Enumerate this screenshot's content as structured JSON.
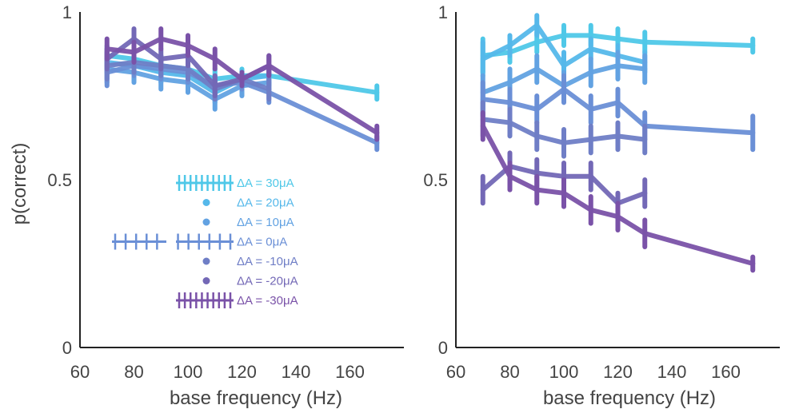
{
  "chart_data": [
    {
      "type": "line",
      "panel": "left",
      "xlabel": "base frequency (Hz)",
      "ylabel": "p(correct)",
      "xlim": [
        60,
        180
      ],
      "ylim": [
        0,
        1
      ],
      "xticks": [
        "60",
        "80",
        "100",
        "120",
        "140",
        "160"
      ],
      "yticks": [
        "0",
        "0.5",
        "1"
      ],
      "grid": false,
      "legend_position": "lower-left",
      "legend": [
        "ΔA = 30μA",
        "ΔA = 20μA",
        "ΔA = 10μA",
        "ΔA = 0μA",
        "ΔA = -10μA",
        "ΔA = -20μA",
        "ΔA = -30μA"
      ],
      "series": [
        {
          "name": "ΔA = 30μA",
          "color": "#4fc8e8",
          "x": [
            70,
            80,
            90,
            100,
            110,
            120,
            130,
            170
          ],
          "y": [
            0.87,
            0.86,
            0.84,
            0.83,
            0.8,
            0.81,
            0.81,
            0.76
          ],
          "err": [
            0.03,
            0.03,
            0.03,
            0.03,
            0.03,
            0.02,
            0.03,
            0.02
          ]
        },
        {
          "name": "ΔA = 20μA",
          "color": "#55b8ea",
          "x": [
            70,
            80,
            90,
            100,
            110,
            120,
            130
          ],
          "y": [
            0.85,
            0.84,
            0.82,
            0.81,
            0.76,
            0.8,
            0.81
          ],
          "err": [
            0.03,
            0.03,
            0.03,
            0.03,
            0.03,
            0.02,
            0.03
          ]
        },
        {
          "name": "ΔA = 10μA",
          "color": "#62a2e2",
          "x": [
            70,
            80,
            90,
            100,
            110,
            120,
            130
          ],
          "y": [
            0.83,
            0.82,
            0.8,
            0.79,
            0.74,
            0.78,
            0.79
          ],
          "err": [
            0.04,
            0.03,
            0.03,
            0.03,
            0.03,
            0.03,
            0.03
          ]
        },
        {
          "name": "ΔA = 0μA",
          "color": "#6a8fd6",
          "x": [
            70,
            80,
            90,
            100,
            110,
            120,
            130,
            170
          ],
          "y": [
            0.82,
            0.84,
            0.83,
            0.82,
            0.78,
            0.79,
            0.76,
            0.61
          ],
          "err": [
            0.04,
            0.03,
            0.03,
            0.03,
            0.03,
            0.02,
            0.03,
            0.02
          ]
        },
        {
          "name": "ΔA = -10μA",
          "color": "#6f7ec6",
          "x": [
            70,
            80,
            90,
            100,
            110,
            120,
            130
          ],
          "y": [
            0.84,
            0.85,
            0.84,
            0.83,
            0.77,
            0.8,
            0.77
          ],
          "err": [
            0.04,
            0.03,
            0.03,
            0.03,
            0.03,
            0.02,
            0.03
          ]
        },
        {
          "name": "ΔA = -20μA",
          "color": "#7368b6",
          "x": [
            70,
            80,
            90,
            100,
            110,
            120,
            130
          ],
          "y": [
            0.86,
            0.92,
            0.86,
            0.87,
            0.78,
            0.8,
            0.84
          ],
          "err": [
            0.03,
            0.03,
            0.03,
            0.03,
            0.03,
            0.02,
            0.03
          ]
        },
        {
          "name": "ΔA = -30μA",
          "color": "#7a52a8",
          "x": [
            70,
            80,
            90,
            100,
            110,
            120,
            130,
            170
          ],
          "y": [
            0.89,
            0.88,
            0.92,
            0.9,
            0.86,
            0.8,
            0.84,
            0.64
          ],
          "err": [
            0.03,
            0.03,
            0.03,
            0.03,
            0.03,
            0.02,
            0.03,
            0.02
          ]
        }
      ]
    },
    {
      "type": "line",
      "panel": "right",
      "xlabel": "base frequency (Hz)",
      "ylabel": "",
      "xlim": [
        60,
        180
      ],
      "ylim": [
        0,
        1
      ],
      "xticks": [
        "60",
        "80",
        "100",
        "120",
        "140",
        "160"
      ],
      "yticks": [
        "0",
        "0.5",
        "1"
      ],
      "grid": false,
      "series": [
        {
          "name": "ΔA = 30μA",
          "color": "#4fc8e8",
          "x": [
            70,
            80,
            90,
            100,
            110,
            120,
            130,
            170
          ],
          "y": [
            0.87,
            0.88,
            0.91,
            0.93,
            0.93,
            0.92,
            0.91,
            0.9
          ],
          "err": [
            0.05,
            0.03,
            0.03,
            0.03,
            0.03,
            0.03,
            0.03,
            0.02
          ]
        },
        {
          "name": "ΔA = 20μA",
          "color": "#55b8ea",
          "x": [
            70,
            80,
            90,
            100,
            110,
            120,
            130
          ],
          "y": [
            0.86,
            0.9,
            0.96,
            0.84,
            0.89,
            0.87,
            0.85
          ],
          "err": [
            0.05,
            0.03,
            0.03,
            0.04,
            0.03,
            0.03,
            0.03
          ]
        },
        {
          "name": "ΔA = 10μA",
          "color": "#62a2e2",
          "x": [
            70,
            80,
            90,
            100,
            110,
            120,
            130
          ],
          "y": [
            0.76,
            0.79,
            0.83,
            0.78,
            0.82,
            0.84,
            0.83
          ],
          "err": [
            0.05,
            0.04,
            0.04,
            0.04,
            0.04,
            0.04,
            0.04
          ]
        },
        {
          "name": "ΔA = 0μA",
          "color": "#6a8fd6",
          "x": [
            70,
            80,
            90,
            100,
            110,
            120,
            130,
            170
          ],
          "y": [
            0.74,
            0.73,
            0.71,
            0.77,
            0.71,
            0.73,
            0.66,
            0.64
          ],
          "err": [
            0.05,
            0.04,
            0.04,
            0.04,
            0.04,
            0.04,
            0.04,
            0.05
          ]
        },
        {
          "name": "ΔA = -10μA",
          "color": "#6f7ec6",
          "x": [
            70,
            80,
            90,
            100,
            110,
            120,
            130
          ],
          "y": [
            0.68,
            0.67,
            0.63,
            0.61,
            0.62,
            0.63,
            0.62
          ],
          "err": [
            0.05,
            0.04,
            0.04,
            0.04,
            0.04,
            0.04,
            0.04
          ]
        },
        {
          "name": "ΔA = -20μA",
          "color": "#7368b6",
          "x": [
            70,
            80,
            90,
            100,
            110,
            120,
            130
          ],
          "y": [
            0.47,
            0.54,
            0.52,
            0.51,
            0.51,
            0.43,
            0.46
          ],
          "err": [
            0.04,
            0.04,
            0.04,
            0.04,
            0.04,
            0.03,
            0.04
          ]
        },
        {
          "name": "ΔA = -30μA",
          "color": "#7a52a8",
          "x": [
            70,
            80,
            90,
            100,
            110,
            120,
            130,
            170
          ],
          "y": [
            0.66,
            0.51,
            0.47,
            0.46,
            0.41,
            0.39,
            0.34,
            0.25
          ],
          "err": [
            0.04,
            0.04,
            0.04,
            0.04,
            0.04,
            0.04,
            0.04,
            0.02
          ]
        }
      ]
    }
  ]
}
